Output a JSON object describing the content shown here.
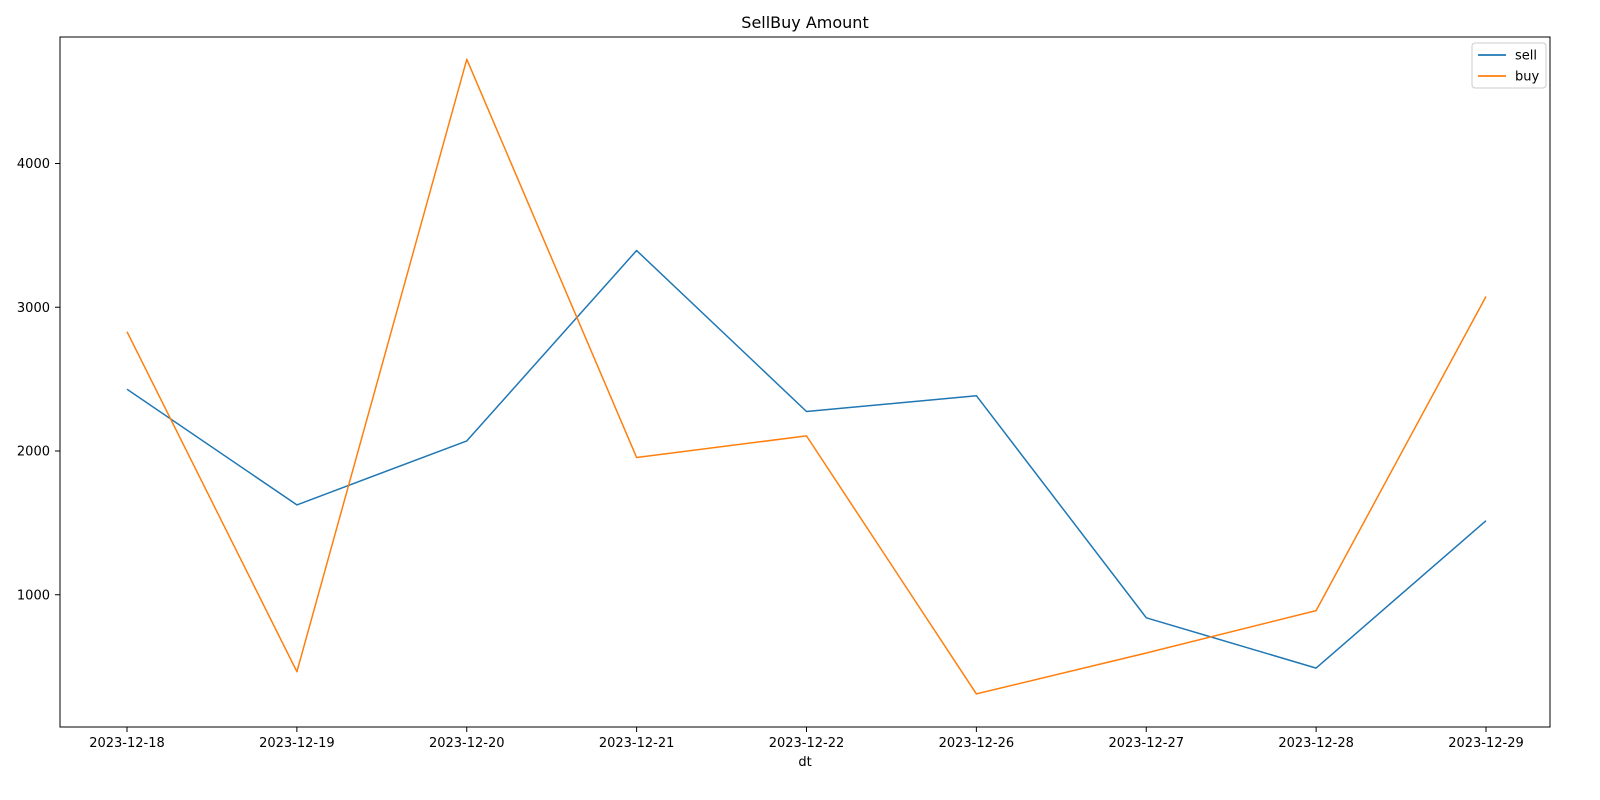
{
  "chart_data": {
    "type": "line",
    "title": "SellBuy Amount",
    "xlabel": "dt",
    "ylabel": "",
    "categories": [
      "2023-12-18",
      "2023-12-19",
      "2023-12-20",
      "2023-12-21",
      "2023-12-22",
      "2023-12-26",
      "2023-12-27",
      "2023-12-28",
      "2023-12-29"
    ],
    "yticks": [
      1000,
      2000,
      3000,
      4000
    ],
    "ylim": [
      80,
      4880
    ],
    "grid": false,
    "legend_position": "top-right",
    "series": [
      {
        "name": "sell",
        "color": "#1f77b4",
        "values": [
          2430,
          1625,
          2070,
          3395,
          2275,
          2385,
          840,
          490,
          1515
        ]
      },
      {
        "name": "buy",
        "color": "#ff7f0e",
        "values": [
          2830,
          465,
          4725,
          1955,
          2105,
          310,
          595,
          890,
          3075
        ]
      }
    ]
  }
}
